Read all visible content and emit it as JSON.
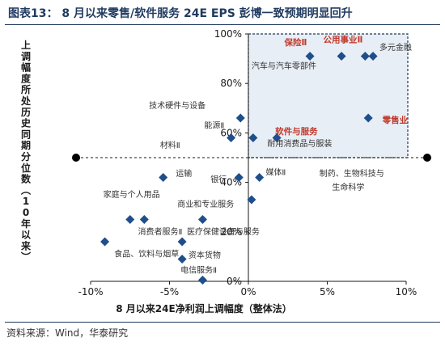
{
  "title": "图表13：  8 月以来零售/软件服务 24E EPS 彭博一致预期明显回升",
  "source": "资料来源：Wind，华泰研究",
  "chart_data": {
    "type": "scatter",
    "xlabel": "8 月以来24E净利润上调幅度（整体法）",
    "ylabel": "上调幅度所处历史同期分位数（10年以来）",
    "xlim": [
      -10,
      10
    ],
    "ylim": [
      0,
      100
    ],
    "x_ticks": [
      {
        "v": -10,
        "label": "-10%"
      },
      {
        "v": -5,
        "label": "-5%"
      },
      {
        "v": 0,
        "label": "0%"
      },
      {
        "v": 5,
        "label": "5%"
      },
      {
        "v": 10,
        "label": "10%"
      }
    ],
    "y_ticks": [
      {
        "v": 0,
        "label": "0%"
      },
      {
        "v": 20,
        "label": "20%"
      },
      {
        "v": 40,
        "label": "40%"
      },
      {
        "v": 60,
        "label": "60%"
      },
      {
        "v": 80,
        "label": "80%"
      },
      {
        "v": 100,
        "label": "100%"
      }
    ],
    "reference_line_y": 50,
    "reference_line_x": 0,
    "colors": {
      "marker": "#1f4e8c",
      "highlight": "#c0392b",
      "box_fill": "#e8eef5",
      "box_border": "#1f3a5f"
    },
    "points": [
      {
        "label": "保险Ⅱ",
        "x": 3.9,
        "y": 91,
        "highlight": true,
        "lx": 3.0,
        "ly": 95.5,
        "anchor": "middle"
      },
      {
        "label": "公用事业Ⅱ",
        "x": 5.9,
        "y": 91,
        "highlight": true,
        "lx": 6.0,
        "ly": 96.5,
        "anchor": "middle"
      },
      {
        "label": "",
        "x": 7.4,
        "y": 91,
        "highlight": false
      },
      {
        "label": "多元金融",
        "x": 7.9,
        "y": 91,
        "highlight": false,
        "lx": 8.3,
        "ly": 93.5,
        "anchor": "start"
      },
      {
        "label": "汽车与汽车零部件",
        "x": 7.6,
        "y": 66,
        "highlight": false,
        "lx": 0.2,
        "ly": 86.0,
        "anchor": "start"
      },
      {
        "label": "零售业",
        "x": 7.6,
        "y": 66,
        "highlight": true,
        "lx": 9.3,
        "ly": 64.0,
        "anchor": "middle"
      },
      {
        "label": "软件与服务",
        "x": 1.8,
        "y": 58,
        "highlight": true,
        "lx": 1.7,
        "ly": 59.5,
        "anchor": "start"
      },
      {
        "label": "耐用消费品与服装",
        "x": 0.3,
        "y": 58,
        "highlight": false,
        "lx": 1.2,
        "ly": 54.5,
        "anchor": "start"
      },
      {
        "label": "技术硬件与设备",
        "x": -0.5,
        "y": 66,
        "highlight": false,
        "lx": -6.3,
        "ly": 70.0,
        "anchor": "start"
      },
      {
        "label": "能源Ⅱ",
        "x": -0.5,
        "y": 66,
        "highlight": false,
        "lx": -2.8,
        "ly": 62.0,
        "anchor": "start"
      },
      {
        "label": "材料Ⅱ",
        "x": -1.1,
        "y": 58,
        "highlight": false,
        "lx": -5.6,
        "ly": 54.0,
        "anchor": "start"
      },
      {
        "label": "运输",
        "x": -5.4,
        "y": 42,
        "highlight": false,
        "lx": -4.6,
        "ly": 42.5,
        "anchor": "start"
      },
      {
        "label": "银行",
        "x": -0.6,
        "y": 42,
        "highlight": false,
        "lx": -2.4,
        "ly": 40.0,
        "anchor": "start"
      },
      {
        "label": "媒体Ⅱ",
        "x": 0.7,
        "y": 42,
        "highlight": false,
        "lx": 1.1,
        "ly": 43.0,
        "anchor": "start"
      },
      {
        "label": "制药、生物科技与",
        "x": 0.2,
        "y": 33,
        "highlight": false,
        "lx": 4.5,
        "ly": 42.5,
        "anchor": "start"
      },
      {
        "label": "生命科学",
        "x": 0.2,
        "y": 33,
        "highlight": false,
        "lx": 5.3,
        "ly": 37.0,
        "anchor": "start"
      },
      {
        "label": "家庭与个人用品",
        "x": -7.5,
        "y": 25,
        "highlight": false,
        "lx": -9.2,
        "ly": 34.0,
        "anchor": "start"
      },
      {
        "label": "商业和专业服务",
        "x": -2.9,
        "y": 25,
        "highlight": false,
        "lx": -4.5,
        "ly": 30.0,
        "anchor": "start"
      },
      {
        "label": "",
        "x": -6.6,
        "y": 25,
        "highlight": false
      },
      {
        "label": "消费者服务Ⅱ",
        "x": -9.1,
        "y": 16,
        "highlight": false,
        "lx": -7.0,
        "ly": 19.0,
        "anchor": "start"
      },
      {
        "label": "医疗保健设备与服务",
        "x": -4.2,
        "y": 16,
        "highlight": false,
        "lx": -3.9,
        "ly": 19.0,
        "anchor": "start"
      },
      {
        "label": "食品、饮料与烟草",
        "x": -4.2,
        "y": 9,
        "highlight": false,
        "lx": -8.5,
        "ly": 10.0,
        "anchor": "start"
      },
      {
        "label": "资本货物",
        "x": -4.2,
        "y": 9,
        "highlight": false,
        "lx": -3.8,
        "ly": 9.5,
        "anchor": "start"
      },
      {
        "label": "电信服务Ⅱ",
        "x": -2.9,
        "y": 0.5,
        "highlight": false,
        "lx": -4.3,
        "ly": 3.5,
        "anchor": "start"
      }
    ]
  }
}
